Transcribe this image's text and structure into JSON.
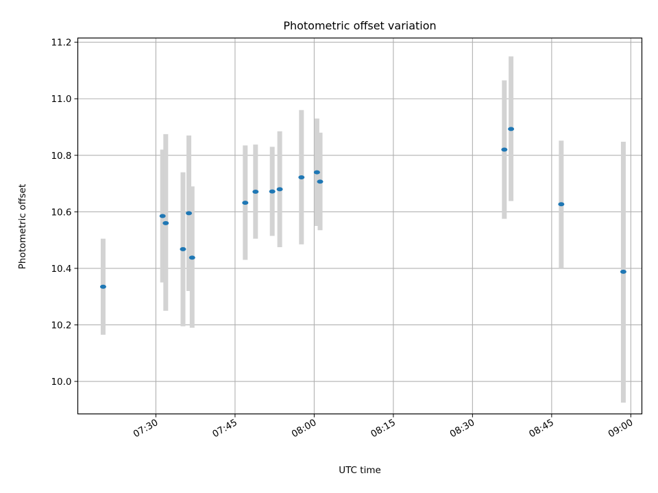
{
  "chart_data": {
    "type": "scatter",
    "title": "Photometric offset variation",
    "xlabel": "UTC time",
    "ylabel": "Photometric offset",
    "x_kind": "time",
    "xlim": [
      "07:15:12",
      "09:02:06"
    ],
    "ylim": [
      9.885,
      11.215
    ],
    "x_ticks": [
      "07:30",
      "07:45",
      "08:00",
      "08:15",
      "08:30",
      "08:45",
      "09:00"
    ],
    "y_ticks": [
      "10.0",
      "10.2",
      "10.4",
      "10.6",
      "10.8",
      "11.0",
      "11.2"
    ],
    "grid": true,
    "series": [
      {
        "marker_color": "#1f77b4",
        "errorbar_color": "#d3d3d3",
        "points": [
          {
            "t": "07:20:00",
            "y": 10.335,
            "lo": 10.165,
            "hi": 10.505
          },
          {
            "t": "07:31:16",
            "y": 10.585,
            "lo": 10.35,
            "hi": 10.82
          },
          {
            "t": "07:31:52",
            "y": 10.56,
            "lo": 10.25,
            "hi": 10.875
          },
          {
            "t": "07:35:08",
            "y": 10.468,
            "lo": 10.195,
            "hi": 10.74
          },
          {
            "t": "07:36:15",
            "y": 10.595,
            "lo": 10.32,
            "hi": 10.87
          },
          {
            "t": "07:36:52",
            "y": 10.438,
            "lo": 10.19,
            "hi": 10.69
          },
          {
            "t": "07:46:56",
            "y": 10.632,
            "lo": 10.43,
            "hi": 10.835
          },
          {
            "t": "07:48:53",
            "y": 10.671,
            "lo": 10.505,
            "hi": 10.838
          },
          {
            "t": "07:52:03",
            "y": 10.672,
            "lo": 10.515,
            "hi": 10.83
          },
          {
            "t": "07:53:28",
            "y": 10.68,
            "lo": 10.475,
            "hi": 10.885
          },
          {
            "t": "07:57:35",
            "y": 10.722,
            "lo": 10.485,
            "hi": 10.96
          },
          {
            "t": "08:00:31",
            "y": 10.74,
            "lo": 10.55,
            "hi": 10.93
          },
          {
            "t": "08:01:07",
            "y": 10.707,
            "lo": 10.535,
            "hi": 10.88
          },
          {
            "t": "08:36:02",
            "y": 10.82,
            "lo": 10.575,
            "hi": 11.065
          },
          {
            "t": "08:37:18",
            "y": 10.893,
            "lo": 10.638,
            "hi": 11.15
          },
          {
            "t": "08:46:49",
            "y": 10.627,
            "lo": 10.4,
            "hi": 10.852
          },
          {
            "t": "08:58:35",
            "y": 10.388,
            "lo": 9.925,
            "hi": 10.848
          }
        ]
      }
    ]
  }
}
